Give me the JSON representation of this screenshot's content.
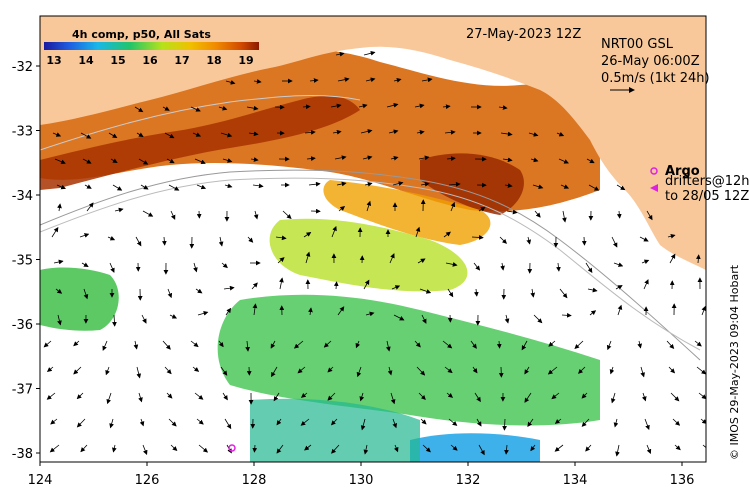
{
  "map": {
    "date_title": "27-May-2023 12Z",
    "colorbar": {
      "title": "4h comp, p50, All Sats",
      "labels": [
        "13",
        "14",
        "15",
        "16",
        "17",
        "18",
        "19"
      ]
    },
    "current_info": {
      "line1": "NRT00 GSL",
      "line2": "26-May 06:00Z",
      "line3": "0.5m/s (1kt 24h)"
    },
    "legend": {
      "argo_label": "Argo",
      "drifters_line1": "drifters@12h",
      "drifters_line2": "to 28/05 12Z"
    },
    "credit": "© IMOS 29-May-2023 09:04 Hobart",
    "x_ticks": [
      "124",
      "126",
      "128",
      "130",
      "132",
      "134",
      "136"
    ],
    "y_ticks": [
      "-32",
      "-33",
      "-34",
      "-35",
      "-36",
      "-37",
      "-38"
    ],
    "colors": {
      "land": "#f8c89a",
      "argo": "#e020e0"
    }
  }
}
